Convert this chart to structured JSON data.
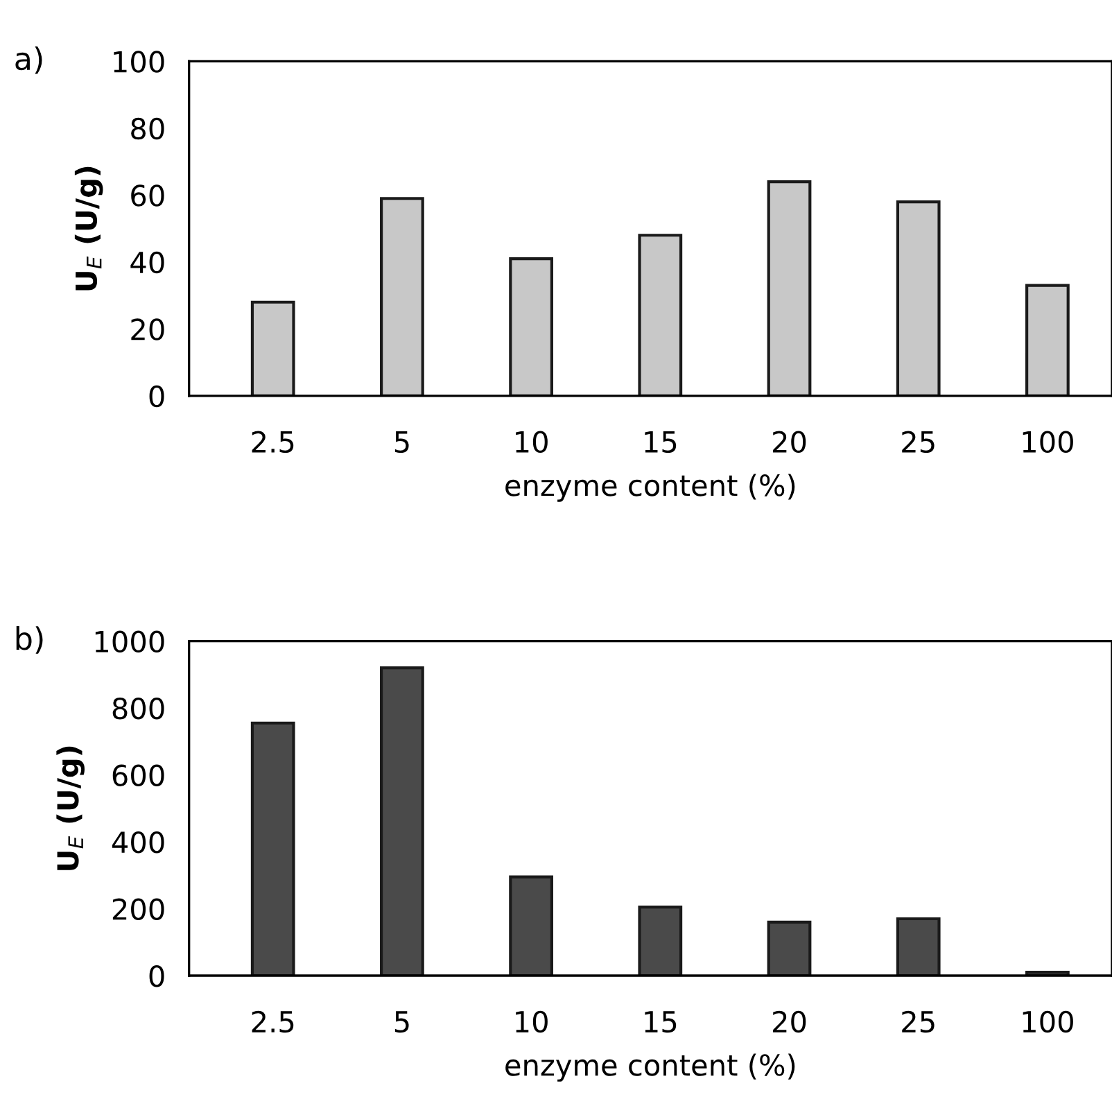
{
  "chart_data": [
    {
      "type": "bar",
      "title": "a)",
      "xlabel": "enzyme content (%)",
      "ylabel": "U$_{E}$ (U/g)",
      "categories": [
        "2.5",
        "5",
        "10",
        "15",
        "20",
        "25",
        "100"
      ],
      "series": [
        {
          "color": "#c8c8c8",
          "values": [
            28,
            59,
            41,
            48,
            64,
            58,
            33
          ]
        }
      ],
      "ylim": [
        0,
        100
      ],
      "yticks": [
        0,
        20,
        40,
        60,
        80,
        100
      ],
      "grid": false
    },
    {
      "type": "bar",
      "title": "b)",
      "xlabel": "enzyme content (%)",
      "ylabel": "U$_{E}$ (U/g)",
      "categories": [
        "2.5",
        "5",
        "10",
        "15",
        "20",
        "25",
        "100"
      ],
      "series": [
        {
          "color": "#4a4a4a",
          "values": [
            755,
            920,
            295,
            205,
            160,
            170,
            10
          ]
        }
      ],
      "ylim": [
        0,
        1000
      ],
      "yticks": [
        0,
        200,
        400,
        600,
        800,
        1000
      ],
      "grid": false
    }
  ]
}
